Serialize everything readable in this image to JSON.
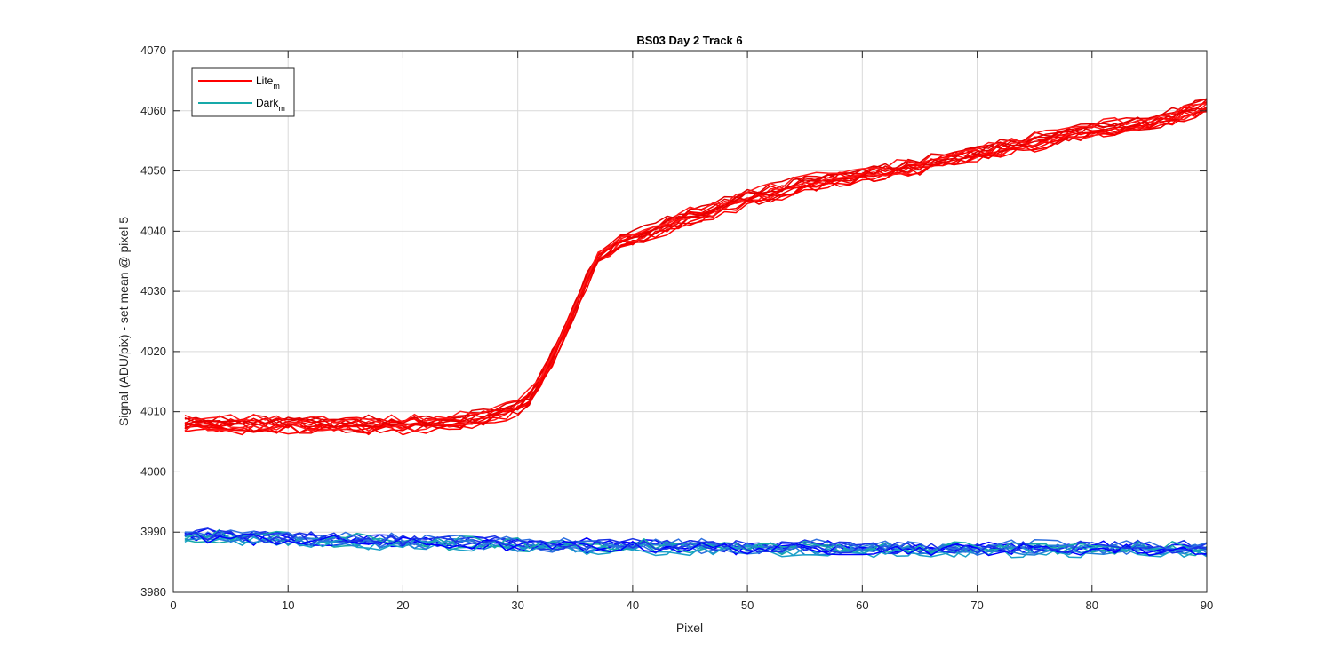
{
  "chart_data": {
    "type": "line",
    "title": "BS03 Day 2 Track 6",
    "xlabel": "Pixel",
    "ylabel": "Signal (ADU/pix) - set mean @ pixel 5",
    "xlim": [
      0,
      90
    ],
    "ylim": [
      3980,
      4070
    ],
    "xticks": [
      0,
      10,
      20,
      30,
      40,
      50,
      60,
      70,
      80,
      90
    ],
    "yticks": [
      3980,
      3990,
      4000,
      4010,
      4020,
      4030,
      4040,
      4050,
      4060,
      4070
    ],
    "grid": true,
    "legend_position": "top-left",
    "legend": [
      {
        "label": "Lite",
        "subscript": "m",
        "color": "#ff0000"
      },
      {
        "label": "Dark",
        "subscript": "m",
        "color": "#16a9a9"
      }
    ],
    "series": [
      {
        "group": "Lite",
        "x": [
          1,
          5,
          10,
          15,
          20,
          25,
          28,
          30,
          31,
          32,
          33,
          34,
          35,
          36,
          37,
          38,
          39,
          40,
          45,
          50,
          55,
          60,
          65,
          70,
          75,
          80,
          85,
          90
        ],
        "y": [
          4008,
          4008,
          4008,
          4008,
          4008,
          4008.5,
          4009.5,
          4011,
          4012.5,
          4015.5,
          4019,
          4023,
          4027.5,
          4032,
          4035.5,
          4037,
          4038.5,
          4039,
          4042.5,
          4045.5,
          4048,
          4049.5,
          4051,
          4053,
          4055,
          4057,
          4058,
          4061
        ]
      },
      {
        "group": "Dark",
        "x": [
          1,
          10,
          20,
          30,
          40,
          50,
          60,
          70,
          80,
          90
        ],
        "y": [
          3989.5,
          3989,
          3988.5,
          3988,
          3987.8,
          3987.6,
          3987.4,
          3987.4,
          3987.4,
          3987.4
        ]
      }
    ]
  },
  "colors": {
    "lite_lines": [
      "#ff0000",
      "#f20000",
      "#e60000",
      "#ff1a1a",
      "#e00000"
    ],
    "dark_lines": [
      "#0000ff",
      "#1a33e6",
      "#1f7fd6",
      "#1aa0c8",
      "#16a9a9",
      "#2d6fe0"
    ]
  }
}
